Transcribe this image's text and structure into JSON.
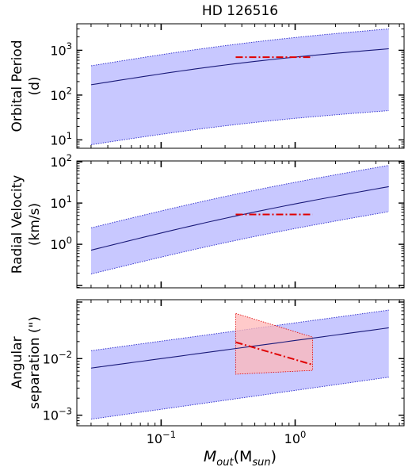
{
  "title": "HD 126516",
  "colors": {
    "band_fill": "#c8c8ff",
    "band_edge": "#3a3acf",
    "median_line": "#1a1a7a",
    "constraint_line": "#e00000",
    "constraint_fill": "#ffb8b8"
  },
  "chart_data": [
    {
      "type": "line",
      "id": "period",
      "ylabel_lines": [
        "Orbital Period",
        "(d)"
      ],
      "yscale": "log",
      "xscale": "log",
      "xlim": [
        0.0235,
        6.5
      ],
      "ylim": [
        6.5,
        3900
      ],
      "yticks": [
        {
          "value": 10,
          "base": "10",
          "exp": "1"
        },
        {
          "value": 100,
          "base": "10",
          "exp": "2"
        },
        {
          "value": 1000,
          "base": "10",
          "exp": "3"
        }
      ],
      "x": [
        0.03,
        5.0
      ],
      "band_lower": [
        7.8,
        45
      ],
      "band_upper": [
        450,
        3000
      ],
      "median": [
        170,
        1080
      ],
      "constraint": {
        "x": [
          0.36,
          1.35
        ],
        "y": [
          700,
          700
        ]
      }
    },
    {
      "type": "line",
      "id": "rv",
      "ylabel_lines": [
        "Radial Velocity",
        "(km/s)"
      ],
      "yscale": "log",
      "xscale": "log",
      "xlim": [
        0.0235,
        6.5
      ],
      "ylim": [
        0.088,
        105
      ],
      "yticks": [
        {
          "value": 1,
          "base": "10",
          "exp": "0"
        },
        {
          "value": 10,
          "base": "10",
          "exp": "1"
        },
        {
          "value": 100,
          "base": "10",
          "exp": "2"
        }
      ],
      "x": [
        0.03,
        5.0
      ],
      "band_lower": [
        0.19,
        6.2
      ],
      "band_upper": [
        2.5,
        82
      ],
      "median": [
        0.72,
        25
      ],
      "constraint": {
        "x": [
          0.36,
          1.35
        ],
        "y": [
          5.3,
          5.3
        ]
      }
    },
    {
      "type": "line",
      "id": "sep",
      "ylabel_lines": [
        "Angular",
        "separation (\")"
      ],
      "yscale": "log",
      "xscale": "log",
      "xlim": [
        0.0235,
        6.5
      ],
      "ylim": [
        0.00065,
        0.11
      ],
      "yticks": [
        {
          "value": 0.001,
          "base": "10",
          "exp": "−3"
        },
        {
          "value": 0.01,
          "base": "10",
          "exp": "−2"
        }
      ],
      "x": [
        0.03,
        5.0
      ],
      "band_lower": [
        0.00085,
        0.0047
      ],
      "band_upper": [
        0.0138,
        0.072
      ],
      "median": [
        0.0068,
        0.035
      ],
      "constraint": {
        "x": [
          0.36,
          1.35
        ],
        "y": [
          0.0195,
          0.0078
        ],
        "band_x": [
          0.36,
          1.35
        ],
        "band_upper": [
          0.063,
          0.024
        ],
        "band_lower": [
          0.0053,
          0.0062
        ]
      }
    }
  ],
  "xaxis": {
    "label_base": "M",
    "label_sub1": "out",
    "label_mid": "(M",
    "label_sub2": "sun",
    "label_end": ")",
    "ticks": [
      {
        "value": 0.1,
        "base": "10",
        "exp": "−1"
      },
      {
        "value": 1,
        "base": "10",
        "exp": "0"
      }
    ]
  }
}
